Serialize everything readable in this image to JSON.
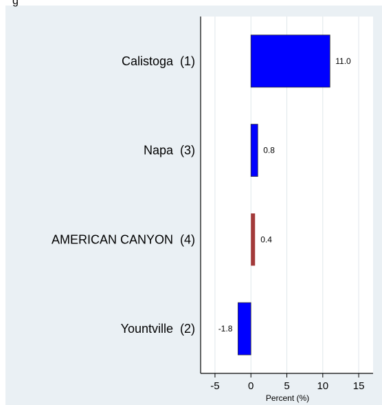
{
  "top_text": "g",
  "colors": {
    "frame_bg": "#eaf0f4",
    "plot_bg": "#ffffff",
    "grid": "#dfe6ea",
    "default_bar": "#0000ff",
    "highlight_bar": "#a33a3a"
  },
  "chart_data": {
    "type": "bar",
    "orientation": "horizontal",
    "categories": [
      "Calistoga  (1)",
      "Napa  (3)",
      "AMERICAN CANYON  (4)",
      "Yountville  (2)"
    ],
    "values": [
      11.0,
      0.8,
      0.4,
      -1.8
    ],
    "value_labels": [
      "11.0",
      "0.8",
      "0.4",
      "-1.8"
    ],
    "bar_colors": [
      "#0000ff",
      "#0000ff",
      "#a33a3a",
      "#0000ff"
    ],
    "xlabel": "Percent (%)",
    "xlim": [
      -7,
      17
    ],
    "xticks": [
      -5,
      0,
      5,
      10,
      15
    ],
    "grid": true
  }
}
